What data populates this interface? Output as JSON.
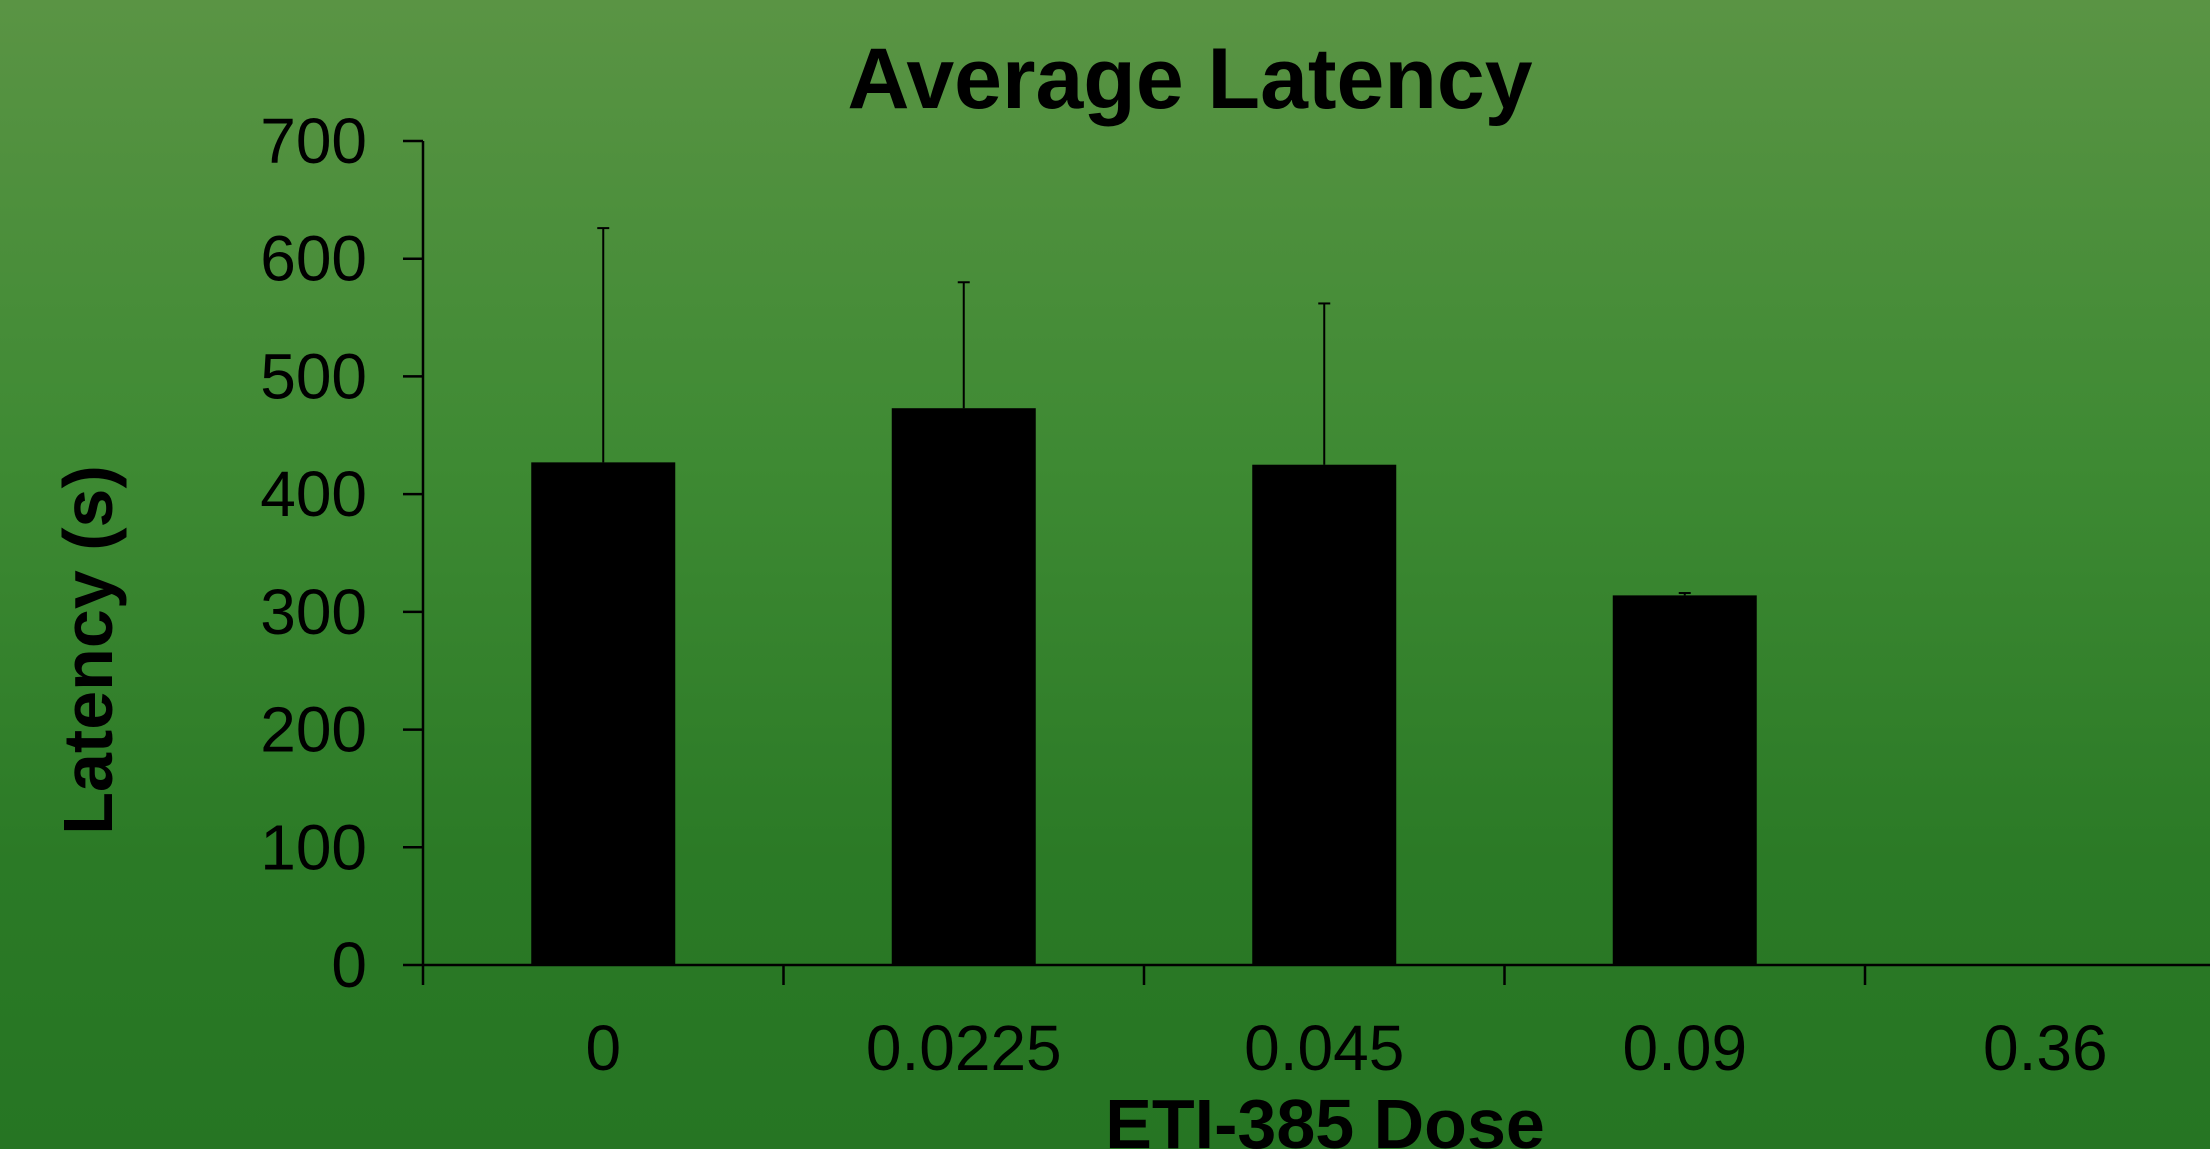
{
  "chart_data": {
    "type": "bar",
    "title": "Average Latency",
    "xlabel": "ETI-385 Dose",
    "ylabel": "Latency (s)",
    "categories": [
      "0",
      "0.0225",
      "0.045",
      "0.09",
      "0.36"
    ],
    "values": [
      427,
      473,
      425,
      314,
      0
    ],
    "error_upper": [
      626,
      580,
      562,
      316,
      null
    ],
    "ylim": [
      0,
      700
    ],
    "yticks": [
      0,
      100,
      200,
      300,
      400,
      500,
      600,
      700
    ],
    "bar_color": "#000000",
    "grid": false,
    "legend": "none"
  }
}
